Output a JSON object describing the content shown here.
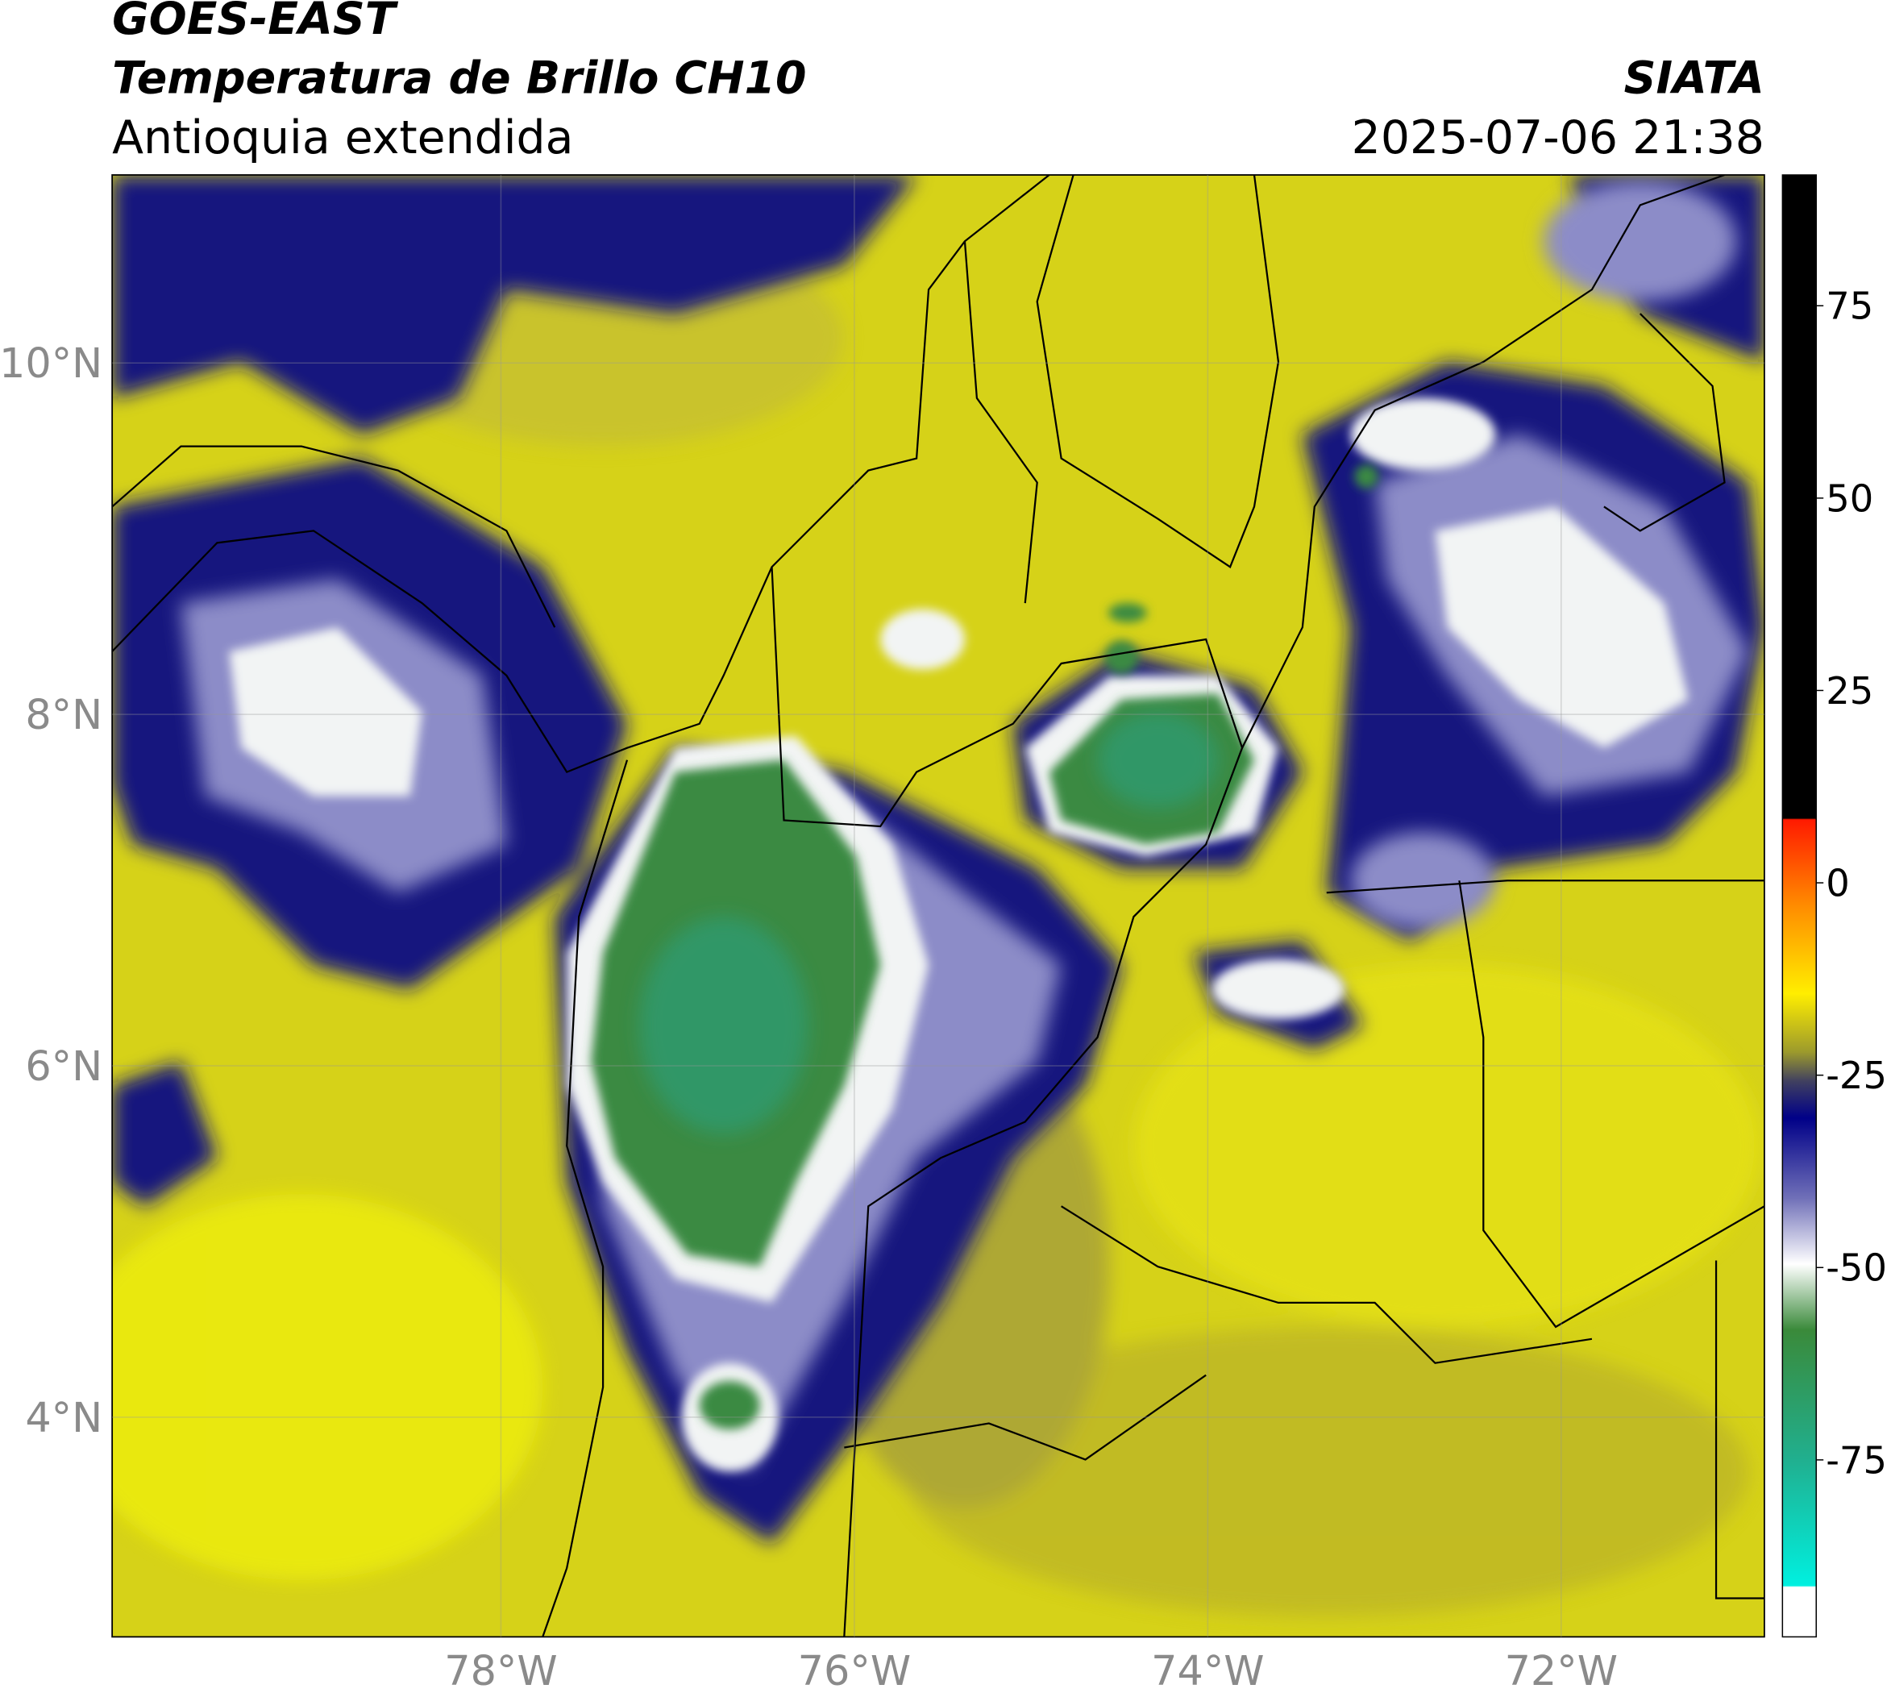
{
  "header": {
    "source": "GOES-EAST",
    "product": "Temperatura de Brillo CH10",
    "region": "Antioquia extendida",
    "agency": "SIATA",
    "datetime": "2025-07-06 21:38"
  },
  "map": {
    "lonlim": [
      -80.2,
      -70.85
    ],
    "latlim": [
      2.75,
      11.07
    ],
    "lon_ticks": [
      {
        "value": -78,
        "label": "78°W"
      },
      {
        "value": -76,
        "label": "76°W"
      },
      {
        "value": -74,
        "label": "74°W"
      },
      {
        "value": -72,
        "label": "72°W"
      }
    ],
    "lat_ticks": [
      {
        "value": 4,
        "label": "4°N"
      },
      {
        "value": 6,
        "label": "6°N"
      },
      {
        "value": 8,
        "label": "8°N"
      },
      {
        "value": 10,
        "label": "10°N"
      }
    ]
  },
  "colorbar": {
    "lim": [
      -98,
      92
    ],
    "ticks": [
      75,
      50,
      25,
      0,
      -25,
      -50,
      -75
    ]
  }
}
